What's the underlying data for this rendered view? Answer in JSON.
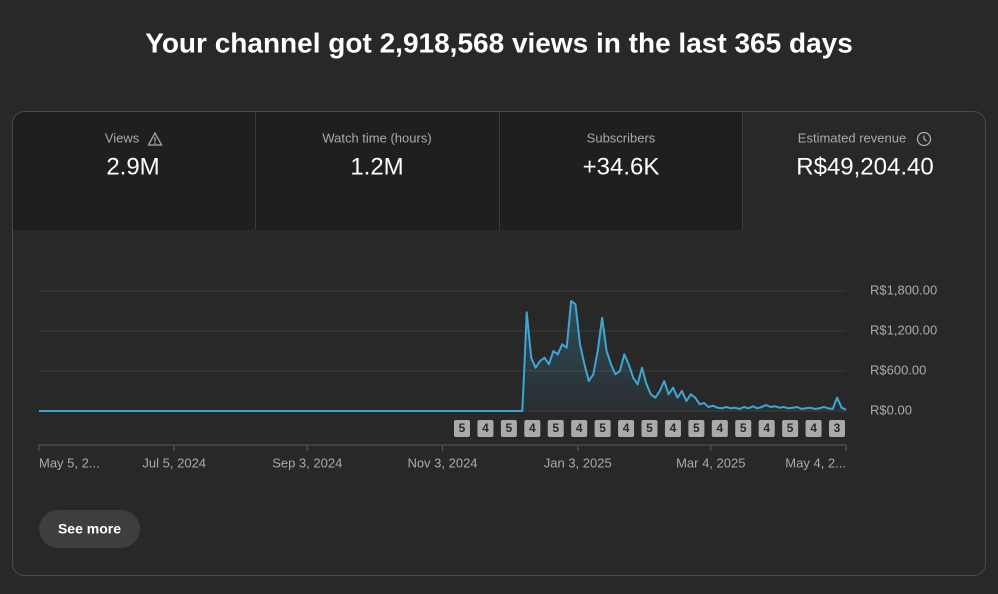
{
  "header": {
    "title": "Your channel got 2,918,568 views in the last 365 days"
  },
  "metrics": [
    {
      "label": "Views",
      "value": "2.9M"
    },
    {
      "label": "Watch time (hours)",
      "value": "1.2M"
    },
    {
      "label": "Subscribers",
      "value": "+34.6K"
    },
    {
      "label": "Estimated revenue",
      "value": "R$49,204.40"
    }
  ],
  "chart_data": {
    "type": "line",
    "color": "#3ea6d3",
    "x": [
      0,
      216,
      218,
      219,
      220,
      222,
      224,
      226,
      228,
      230,
      232,
      234,
      236,
      238,
      240,
      242,
      244,
      246,
      248,
      250,
      252,
      254,
      256,
      258,
      260,
      262,
      264,
      266,
      268,
      270,
      272,
      274,
      276,
      278,
      280,
      282,
      284,
      286,
      288,
      290,
      292,
      294,
      296,
      298,
      300,
      302,
      304,
      306,
      308,
      310,
      312,
      314,
      316,
      318,
      320,
      322,
      324,
      326,
      328,
      330,
      332,
      334,
      336,
      338,
      340,
      342,
      344,
      346,
      348,
      350,
      352,
      354,
      356,
      358,
      360,
      362,
      364
    ],
    "values": [
      0,
      0,
      0,
      700,
      1480,
      800,
      650,
      750,
      800,
      700,
      900,
      850,
      1000,
      950,
      1650,
      1600,
      1000,
      700,
      450,
      550,
      900,
      1400,
      900,
      700,
      550,
      600,
      850,
      700,
      500,
      400,
      650,
      400,
      250,
      200,
      300,
      450,
      250,
      350,
      200,
      300,
      150,
      250,
      200,
      100,
      120,
      60,
      80,
      50,
      40,
      60,
      40,
      50,
      30,
      60,
      40,
      70,
      40,
      60,
      90,
      60,
      70,
      50,
      60,
      40,
      50,
      60,
      30,
      40,
      50,
      30,
      40,
      60,
      40,
      30,
      200,
      50,
      20
    ],
    "xlim": [
      0,
      364
    ],
    "xticks": [
      {
        "value": 0,
        "label": "May 5, 2..."
      },
      {
        "value": 61,
        "label": "Jul 5, 2024"
      },
      {
        "value": 121,
        "label": "Sep 3, 2024"
      },
      {
        "value": 182,
        "label": "Nov 3, 2024"
      },
      {
        "value": 243,
        "label": "Jan 3, 2025"
      },
      {
        "value": 303,
        "label": "Mar 4, 2025"
      },
      {
        "value": 364,
        "label": "May 4, 2..."
      }
    ],
    "ylim": [
      0,
      1800
    ],
    "yticks": [
      {
        "value": 0,
        "label": "R$0.00"
      },
      {
        "value": 600,
        "label": "R$600.00"
      },
      {
        "value": 1200,
        "label": "R$1,200.00"
      },
      {
        "value": 1800,
        "label": "R$1,800.00"
      }
    ],
    "grid": true,
    "annotations": [
      "5",
      "4",
      "5",
      "4",
      "5",
      "4",
      "5",
      "4",
      "5",
      "4",
      "5",
      "4",
      "5",
      "4",
      "5",
      "4",
      "3"
    ]
  },
  "button": {
    "label": "See more"
  }
}
